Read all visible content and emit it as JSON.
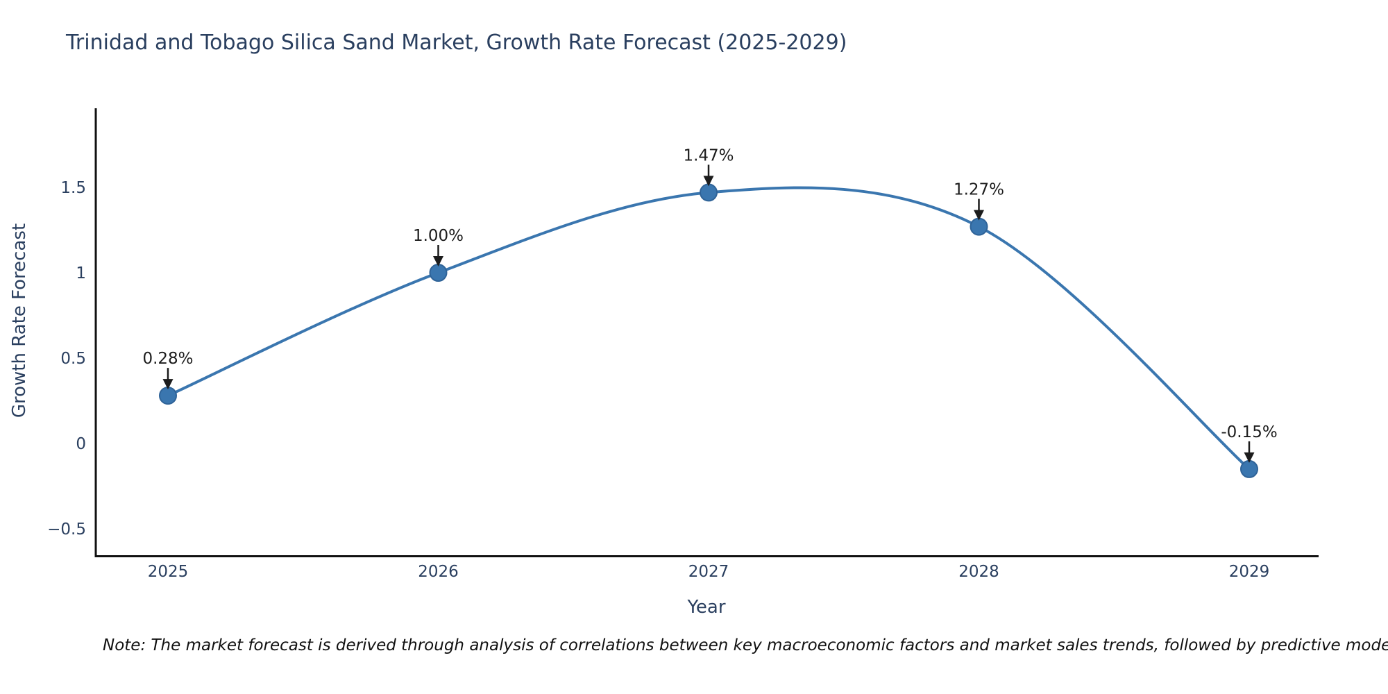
{
  "chart_data": {
    "type": "line",
    "line_shape": "spline",
    "title": "Trinidad and Tobago Silica Sand Market, Growth Rate Forecast (2025-2029)",
    "xlabel": "Year",
    "ylabel": "Growth Rate Forecast",
    "x": [
      2025,
      2026,
      2027,
      2028,
      2029
    ],
    "y": [
      0.28,
      1.0,
      1.47,
      1.27,
      -0.15
    ],
    "point_labels": [
      "0.28%",
      "1.00%",
      "1.47%",
      "1.27%",
      "-0.15%"
    ],
    "xtick_labels": [
      "2025",
      "2026",
      "2027",
      "2028",
      "2029"
    ],
    "yticks": [
      1.5,
      1,
      0.5,
      0,
      -0.5
    ],
    "ytick_labels": [
      "1.5",
      "1",
      "0.5",
      "0",
      "−0.5"
    ],
    "ylim": [
      -0.65,
      1.95
    ],
    "grid": false,
    "legend": "none",
    "markers": true,
    "annotations_have_arrows": true,
    "note": "Note: The market forecast is derived through analysis of correlations between key macroeconomic factors and market sales trends, followed by predictive modeling to project future sa",
    "colors": {
      "line": "#3a76af",
      "marker": "#3a76af",
      "marker_edge": "#2f6398",
      "axis": "#111111",
      "tick_text": "#2a3f5f",
      "title_text": "#2a3f5f",
      "annotation_text": "#1c1c1c",
      "background": "#ffffff"
    }
  }
}
